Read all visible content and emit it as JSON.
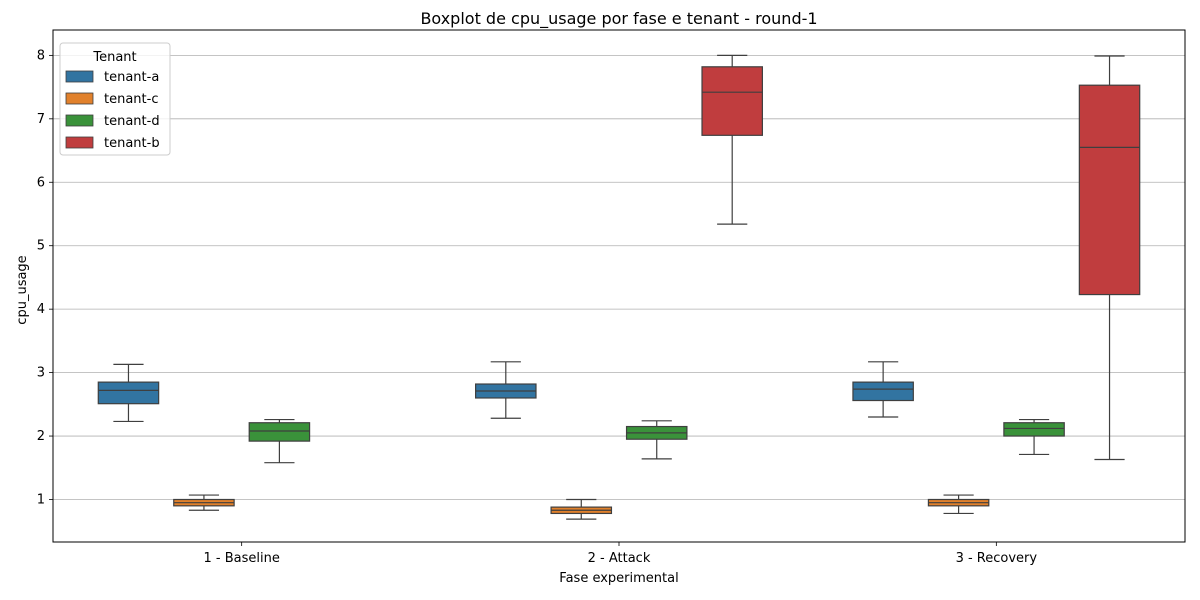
{
  "chart_data": {
    "type": "boxplot",
    "title": "Boxplot de cpu_usage por fase e tenant - round-1",
    "xlabel": "Fase experimental",
    "ylabel": "cpu_usage",
    "ylim": [
      0.33,
      8.4
    ],
    "yticks": [
      1,
      2,
      3,
      4,
      5,
      6,
      7,
      8
    ],
    "grid": "y",
    "legend": {
      "title": "Tenant",
      "placement": "top-left"
    },
    "categories": [
      "1 - Baseline",
      "2 - Attack",
      "3 - Recovery"
    ],
    "series": [
      {
        "name": "tenant-a",
        "color": "#3274a1",
        "boxes": [
          {
            "whisker_low": 2.23,
            "q1": 2.51,
            "median": 2.72,
            "q3": 2.85,
            "whisker_high": 3.13
          },
          {
            "whisker_low": 2.28,
            "q1": 2.6,
            "median": 2.71,
            "q3": 2.82,
            "whisker_high": 3.17
          },
          {
            "whisker_low": 2.3,
            "q1": 2.56,
            "median": 2.74,
            "q3": 2.85,
            "whisker_high": 3.17
          }
        ]
      },
      {
        "name": "tenant-c",
        "color": "#e1812c",
        "boxes": [
          {
            "whisker_low": 0.83,
            "q1": 0.9,
            "median": 0.95,
            "q3": 1.0,
            "whisker_high": 1.07
          },
          {
            "whisker_low": 0.69,
            "q1": 0.78,
            "median": 0.83,
            "q3": 0.88,
            "whisker_high": 1.0
          },
          {
            "whisker_low": 0.78,
            "q1": 0.9,
            "median": 0.95,
            "q3": 1.0,
            "whisker_high": 1.07
          }
        ]
      },
      {
        "name": "tenant-d",
        "color": "#3a923a",
        "boxes": [
          {
            "whisker_low": 1.58,
            "q1": 1.92,
            "median": 2.08,
            "q3": 2.21,
            "whisker_high": 2.26
          },
          {
            "whisker_low": 1.64,
            "q1": 1.95,
            "median": 2.05,
            "q3": 2.15,
            "whisker_high": 2.24
          },
          {
            "whisker_low": 1.71,
            "q1": 2.0,
            "median": 2.12,
            "q3": 2.21,
            "whisker_high": 2.26
          }
        ]
      },
      {
        "name": "tenant-b",
        "color": "#c03d3e",
        "boxes": [
          null,
          {
            "whisker_low": 5.34,
            "q1": 6.74,
            "median": 7.42,
            "q3": 7.82,
            "whisker_high": 8.0
          },
          {
            "whisker_low": 1.63,
            "q1": 4.23,
            "median": 6.55,
            "q3": 7.53,
            "whisker_high": 7.99
          }
        ]
      }
    ]
  }
}
